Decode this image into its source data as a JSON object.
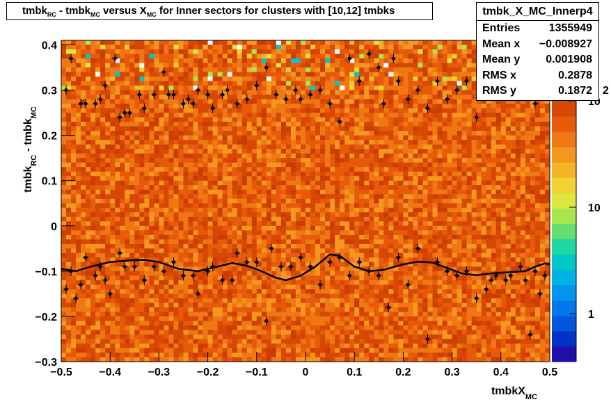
{
  "title": {
    "parts": [
      {
        "text": "tmbk",
        "sub": "RC"
      },
      {
        "text": " - tmbk",
        "sub": "MC"
      },
      {
        "text": " versus X",
        "sub": "MC"
      },
      {
        "text": " for Inner sectors for clusters with [10,12] tmbks",
        "sub": ""
      }
    ]
  },
  "stats": {
    "name": "tmbk_X_MC_Innerp4",
    "rows": [
      {
        "label": "Entries",
        "value": "1355949"
      },
      {
        "label": "Mean x",
        "value": "−0.008927"
      },
      {
        "label": "Mean y",
        "value": "0.001908"
      },
      {
        "label": "RMS x",
        "value": "0.2878"
      },
      {
        "label": "RMS y",
        "value": "0.1872"
      }
    ]
  },
  "chart_data": {
    "type": "heatmap",
    "x_axis": {
      "label": "tmbkX",
      "label_sub": "MC",
      "range": [
        -0.5,
        0.5
      ],
      "ticks": [
        "−0.5",
        "−0.4",
        "−0.3",
        "−0.2",
        "−0.1",
        "0",
        "0.1",
        "0.2",
        "0.3",
        "0.4",
        "0.5"
      ]
    },
    "y_axis": {
      "label": "tmbk",
      "label_sub1": "RC",
      "label_mid": " - tmbk",
      "label_sub2": "MC",
      "range": [
        -0.3,
        0.41
      ],
      "ticks": [
        "−0.3",
        "−0.2",
        "−0.1",
        "0",
        "0.1",
        "0.2",
        "0.3",
        "0.4"
      ]
    },
    "z_axis": {
      "scale": "log",
      "ticks": [
        "1",
        "10",
        "10"
      ],
      "exp_label": "2"
    },
    "palette": [
      "#1f0fa8",
      "#0033c8",
      "#0057de",
      "#0077ea",
      "#0096f0",
      "#00b2e6",
      "#00c8c8",
      "#1ed6a0",
      "#66de72",
      "#a8e650",
      "#dce63c",
      "#f0d232",
      "#f5b428",
      "#f5961e",
      "#f07814",
      "#e65a0a",
      "#d74805"
    ],
    "fit_curve": {
      "points": [
        [
          -0.5,
          -0.095
        ],
        [
          -0.47,
          -0.1
        ],
        [
          -0.44,
          -0.09
        ],
        [
          -0.4,
          -0.08
        ],
        [
          -0.36,
          -0.076
        ],
        [
          -0.33,
          -0.075
        ],
        [
          -0.3,
          -0.08
        ],
        [
          -0.26,
          -0.095
        ],
        [
          -0.22,
          -0.1
        ],
        [
          -0.18,
          -0.09
        ],
        [
          -0.15,
          -0.082
        ],
        [
          -0.12,
          -0.088
        ],
        [
          -0.09,
          -0.1
        ],
        [
          -0.06,
          -0.115
        ],
        [
          -0.04,
          -0.12
        ],
        [
          -0.01,
          -0.11
        ],
        [
          0.02,
          -0.09
        ],
        [
          0.05,
          -0.063
        ],
        [
          0.07,
          -0.066
        ],
        [
          0.1,
          -0.09
        ],
        [
          0.13,
          -0.1
        ],
        [
          0.16,
          -0.097
        ],
        [
          0.2,
          -0.085
        ],
        [
          0.23,
          -0.079
        ],
        [
          0.26,
          -0.081
        ],
        [
          0.29,
          -0.093
        ],
        [
          0.32,
          -0.105
        ],
        [
          0.35,
          -0.109
        ],
        [
          0.38,
          -0.105
        ],
        [
          0.42,
          -0.102
        ],
        [
          0.45,
          -0.1
        ],
        [
          0.47,
          -0.09
        ],
        [
          0.49,
          -0.083
        ],
        [
          0.5,
          -0.085
        ]
      ]
    },
    "profile_points": [
      [
        -0.49,
        -0.14
      ],
      [
        -0.48,
        -0.1
      ],
      [
        -0.47,
        -0.16
      ],
      [
        -0.46,
        -0.13
      ],
      [
        -0.45,
        -0.07
      ],
      [
        -0.43,
        -0.11
      ],
      [
        -0.42,
        -0.09
      ],
      [
        -0.41,
        -0.12
      ],
      [
        -0.4,
        -0.15
      ],
      [
        -0.38,
        -0.06
      ],
      [
        -0.37,
        -0.09
      ],
      [
        -0.35,
        -0.09
      ],
      [
        -0.33,
        -0.12
      ],
      [
        -0.31,
        -0.09
      ],
      [
        -0.29,
        -0.1
      ],
      [
        -0.27,
        -0.08
      ],
      [
        -0.25,
        -0.11
      ],
      [
        -0.23,
        -0.11
      ],
      [
        -0.22,
        -0.15
      ],
      [
        -0.2,
        -0.1
      ],
      [
        -0.19,
        -0.09
      ],
      [
        -0.17,
        -0.12
      ],
      [
        -0.15,
        -0.12
      ],
      [
        -0.14,
        -0.06
      ],
      [
        -0.12,
        -0.08
      ],
      [
        -0.1,
        -0.08
      ],
      [
        -0.08,
        -0.21
      ],
      [
        -0.07,
        -0.05
      ],
      [
        -0.05,
        -0.09
      ],
      [
        -0.03,
        -0.09
      ],
      [
        -0.01,
        -0.07
      ],
      [
        0.01,
        -0.09
      ],
      [
        0.03,
        -0.13
      ],
      [
        0.05,
        -0.08
      ],
      [
        0.07,
        -0.07
      ],
      [
        0.09,
        -0.11
      ],
      [
        0.11,
        -0.08
      ],
      [
        0.13,
        -0.1
      ],
      [
        0.15,
        -0.11
      ],
      [
        0.17,
        -0.18
      ],
      [
        0.19,
        -0.07
      ],
      [
        0.21,
        -0.13
      ],
      [
        0.23,
        -0.05
      ],
      [
        0.25,
        -0.25
      ],
      [
        0.27,
        -0.08
      ],
      [
        0.29,
        -0.1
      ],
      [
        0.31,
        -0.11
      ],
      [
        0.33,
        -0.1
      ],
      [
        0.35,
        -0.16
      ],
      [
        0.37,
        -0.14
      ],
      [
        0.38,
        -0.12
      ],
      [
        0.39,
        -0.11
      ],
      [
        0.41,
        -0.12
      ],
      [
        0.42,
        -0.11
      ],
      [
        0.44,
        -0.09
      ],
      [
        0.45,
        -0.12
      ],
      [
        0.46,
        -0.24
      ],
      [
        0.47,
        -0.1
      ],
      [
        0.48,
        -0.15
      ],
      [
        0.49,
        -0.11
      ],
      [
        -0.49,
        0.3
      ],
      [
        -0.48,
        0.37
      ],
      [
        -0.46,
        0.27
      ],
      [
        -0.45,
        0.27
      ],
      [
        -0.43,
        0.27
      ],
      [
        -0.42,
        0.28
      ],
      [
        -0.41,
        0.31
      ],
      [
        -0.39,
        0.37
      ],
      [
        -0.38,
        0.24
      ],
      [
        -0.37,
        0.25
      ],
      [
        -0.36,
        0.25
      ],
      [
        -0.34,
        0.29
      ],
      [
        -0.33,
        0.26
      ],
      [
        -0.31,
        0.29
      ],
      [
        -0.29,
        0.34
      ],
      [
        -0.28,
        0.29
      ],
      [
        -0.27,
        0.29
      ],
      [
        -0.25,
        0.27
      ],
      [
        -0.24,
        0.28
      ],
      [
        -0.23,
        0.27
      ],
      [
        -0.22,
        0.3
      ],
      [
        -0.2,
        0.29
      ],
      [
        -0.19,
        0.26
      ],
      [
        -0.17,
        0.29
      ],
      [
        -0.16,
        0.3
      ],
      [
        -0.14,
        0.27
      ],
      [
        -0.12,
        0.28
      ],
      [
        -0.1,
        0.31
      ],
      [
        -0.08,
        0.35
      ],
      [
        -0.06,
        0.29
      ],
      [
        -0.04,
        0.28
      ],
      [
        -0.02,
        0.3
      ],
      [
        -0.01,
        0.28
      ],
      [
        0.01,
        0.29
      ],
      [
        0.03,
        0.3
      ],
      [
        0.05,
        0.27
      ],
      [
        0.07,
        0.23
      ],
      [
        0.09,
        0.37
      ],
      [
        0.11,
        0.32
      ],
      [
        0.13,
        0.38
      ],
      [
        0.15,
        0.35
      ],
      [
        0.16,
        0.27
      ],
      [
        0.18,
        0.37
      ],
      [
        0.19,
        0.32
      ],
      [
        0.21,
        0.28
      ],
      [
        0.23,
        0.3
      ],
      [
        0.25,
        0.26
      ],
      [
        0.27,
        0.32
      ],
      [
        0.29,
        0.28
      ],
      [
        0.31,
        0.3
      ],
      [
        0.33,
        0.32
      ],
      [
        0.35,
        0.24
      ],
      [
        0.37,
        0.31
      ],
      [
        0.39,
        0.35
      ],
      [
        0.41,
        0.31
      ],
      [
        0.44,
        0.39
      ],
      [
        0.45,
        0.36
      ],
      [
        0.47,
        0.27
      ],
      [
        0.49,
        0.31
      ]
    ]
  }
}
